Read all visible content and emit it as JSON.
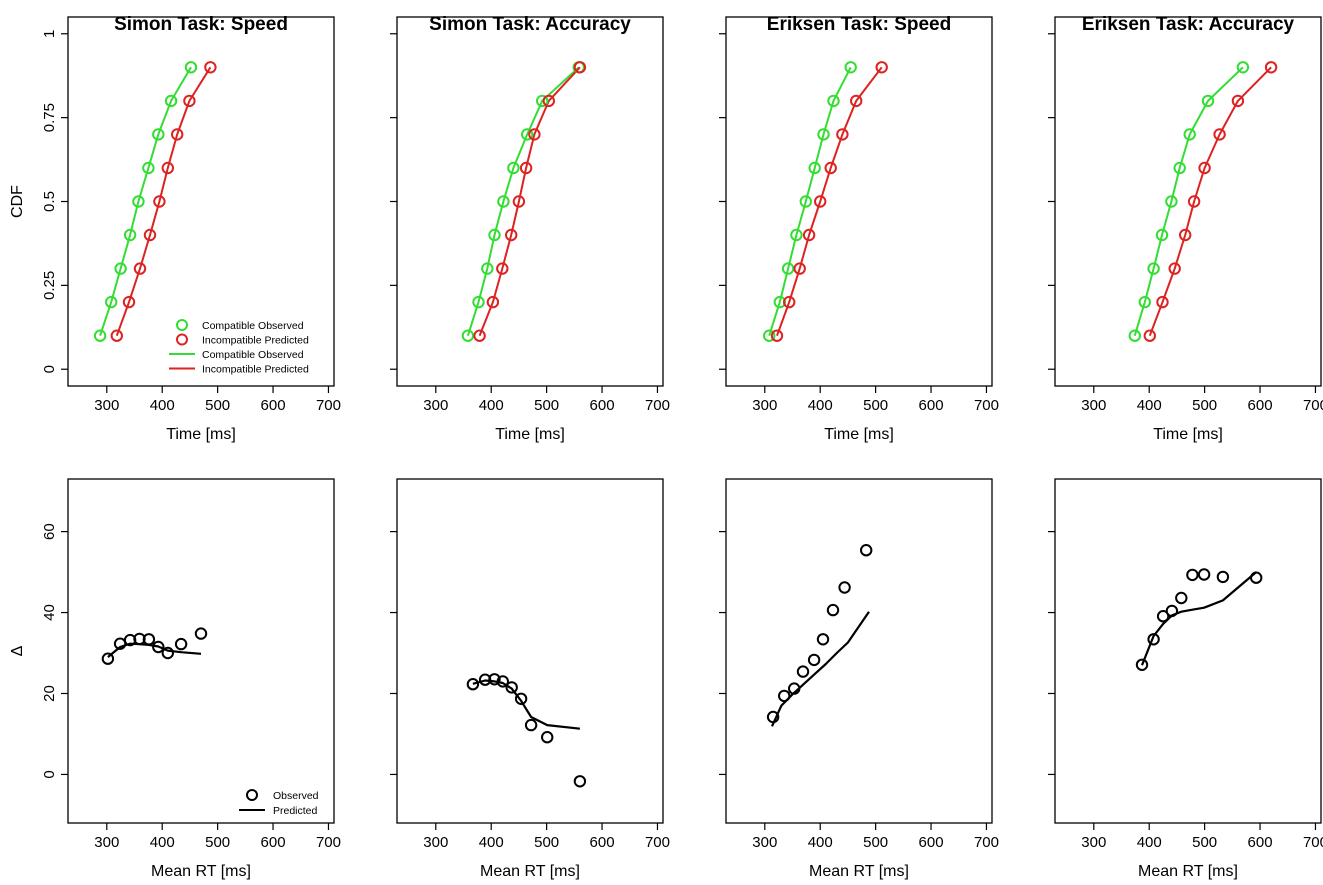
{
  "colors": {
    "compatible": "#33dd33",
    "incompatible": "#dd2222",
    "observed": "#000000"
  },
  "cdf_panels": [
    {
      "title": "Simon Task: Speed",
      "xlabel": "Time [ms]",
      "ylabel": "CDF",
      "show_yticklabels": true,
      "show_legend": true
    },
    {
      "title": "Simon Task: Accuracy",
      "xlabel": "Time [ms]",
      "ylabel": "",
      "show_yticklabels": false,
      "show_legend": false
    },
    {
      "title": "Eriksen Task: Speed",
      "xlabel": "Time [ms]",
      "ylabel": "",
      "show_yticklabels": false,
      "show_legend": false
    },
    {
      "title": "Eriksen Task: Accuracy",
      "xlabel": "Time [ms]",
      "ylabel": "",
      "show_yticklabels": false,
      "show_legend": false
    }
  ],
  "delta_panels": [
    {
      "xlabel": "Mean RT [ms]",
      "ylabel": "Δ",
      "show_yticklabels": true,
      "show_legend": true
    },
    {
      "xlabel": "Mean RT [ms]",
      "ylabel": "",
      "show_yticklabels": false,
      "show_legend": false
    },
    {
      "xlabel": "Mean RT [ms]",
      "ylabel": "",
      "show_yticklabels": false,
      "show_legend": false
    },
    {
      "xlabel": "Mean RT [ms]",
      "ylabel": "",
      "show_yticklabels": false,
      "show_legend": false
    }
  ],
  "cdf_legend": [
    "Compatible Observed",
    "Incompatible Predicted",
    "Compatible Observed",
    "Incompatible Predicted"
  ],
  "delta_legend": [
    "Observed",
    "Predicted"
  ],
  "chart_data": [
    {
      "type": "line",
      "title": "Simon Task: Speed",
      "xlabel": "Time [ms]",
      "ylabel": "CDF",
      "xlim": [
        230,
        710
      ],
      "ylim": [
        -0.05,
        1.05
      ],
      "xticks": [
        "300",
        "400",
        "500",
        "600",
        "700"
      ],
      "yticks": [
        "0",
        "0.25",
        "0.5",
        "0.75",
        "1"
      ],
      "probabilities": [
        0.1,
        0.2,
        0.3,
        0.4,
        0.5,
        0.6,
        0.7,
        0.8,
        0.9
      ],
      "series": [
        {
          "name": "Compatible Observed",
          "kind": "points",
          "color": "#33dd33",
          "x": [
            288,
            308,
            325,
            342,
            357,
            375,
            393,
            416,
            452
          ]
        },
        {
          "name": "Incompatible Predicted",
          "kind": "points",
          "color": "#dd2222",
          "x": [
            318,
            340,
            360,
            378,
            395,
            410,
            427,
            449,
            487
          ]
        },
        {
          "name": "Compatible Observed",
          "kind": "line",
          "color": "#33dd33",
          "x": [
            288,
            308,
            325,
            342,
            357,
            375,
            393,
            416,
            452
          ]
        },
        {
          "name": "Incompatible Predicted",
          "kind": "line",
          "color": "#dd2222",
          "x": [
            318,
            340,
            360,
            378,
            395,
            410,
            427,
            449,
            487
          ]
        }
      ]
    },
    {
      "type": "line",
      "title": "Simon Task: Accuracy",
      "xlabel": "Time [ms]",
      "ylabel": "",
      "xlim": [
        230,
        710
      ],
      "ylim": [
        -0.05,
        1.05
      ],
      "xticks": [
        "300",
        "400",
        "500",
        "600",
        "700"
      ],
      "yticks": [
        "",
        "",
        "",
        "",
        ""
      ],
      "probabilities": [
        0.1,
        0.2,
        0.3,
        0.4,
        0.5,
        0.6,
        0.7,
        0.8,
        0.9
      ],
      "series": [
        {
          "kind": "points",
          "color": "#33dd33",
          "x": [
            358,
            377,
            393,
            406,
            422,
            440,
            465,
            492,
            558
          ]
        },
        {
          "kind": "points",
          "color": "#dd2222",
          "x": [
            379,
            403,
            420,
            436,
            450,
            463,
            478,
            504,
            560
          ]
        },
        {
          "kind": "line",
          "color": "#33dd33",
          "x": [
            358,
            377,
            393,
            406,
            422,
            440,
            465,
            492,
            558
          ]
        },
        {
          "kind": "line",
          "color": "#dd2222",
          "x": [
            379,
            403,
            420,
            436,
            450,
            463,
            478,
            504,
            560
          ]
        }
      ]
    },
    {
      "type": "line",
      "title": "Eriksen Task: Speed",
      "xlabel": "Time [ms]",
      "ylabel": "",
      "xlim": [
        230,
        710
      ],
      "ylim": [
        -0.05,
        1.05
      ],
      "xticks": [
        "300",
        "400",
        "500",
        "600",
        "700"
      ],
      "yticks": [
        "",
        "",
        "",
        "",
        ""
      ],
      "probabilities": [
        0.1,
        0.2,
        0.3,
        0.4,
        0.5,
        0.6,
        0.7,
        0.8,
        0.9
      ],
      "series": [
        {
          "kind": "points",
          "color": "#33dd33",
          "x": [
            308,
            327,
            342,
            357,
            374,
            390,
            406,
            424,
            455
          ]
        },
        {
          "kind": "points",
          "color": "#dd2222",
          "x": [
            322,
            344,
            363,
            380,
            400,
            419,
            440,
            465,
            511
          ]
        },
        {
          "kind": "line",
          "color": "#33dd33",
          "x": [
            308,
            327,
            342,
            357,
            374,
            390,
            406,
            424,
            455
          ]
        },
        {
          "kind": "line",
          "color": "#dd2222",
          "x": [
            322,
            344,
            363,
            380,
            400,
            419,
            440,
            465,
            511
          ]
        }
      ]
    },
    {
      "type": "line",
      "title": "Eriksen Task: Accuracy",
      "xlabel": "Time [ms]",
      "ylabel": "",
      "xlim": [
        230,
        710
      ],
      "ylim": [
        -0.05,
        1.05
      ],
      "xticks": [
        "300",
        "400",
        "500",
        "600",
        "700"
      ],
      "yticks": [
        "",
        "",
        "",
        "",
        ""
      ],
      "probabilities": [
        0.1,
        0.2,
        0.3,
        0.4,
        0.5,
        0.6,
        0.7,
        0.8,
        0.9
      ],
      "series": [
        {
          "kind": "points",
          "color": "#33dd33",
          "x": [
            374,
            392,
            408,
            423,
            440,
            455,
            473,
            506,
            569
          ]
        },
        {
          "kind": "points",
          "color": "#dd2222",
          "x": [
            401,
            424,
            446,
            465,
            481,
            500,
            527,
            560,
            620
          ]
        },
        {
          "kind": "line",
          "color": "#33dd33",
          "x": [
            374,
            392,
            408,
            423,
            440,
            455,
            473,
            506,
            569
          ]
        },
        {
          "kind": "line",
          "color": "#dd2222",
          "x": [
            401,
            424,
            446,
            465,
            481,
            500,
            527,
            560,
            620
          ]
        }
      ]
    },
    {
      "type": "scatter",
      "title": "",
      "xlabel": "Mean RT [ms]",
      "ylabel": "Δ",
      "xlim": [
        230,
        710
      ],
      "ylim": [
        -12,
        73
      ],
      "xticks": [
        "300",
        "400",
        "500",
        "600",
        "700"
      ],
      "yticks": [
        "0",
        "20",
        "40",
        "60"
      ],
      "series": [
        {
          "name": "Observed",
          "kind": "points",
          "color": "#000000",
          "x": [
            302,
            324,
            342,
            359,
            376,
            393,
            410,
            434,
            470
          ],
          "y": [
            28.6,
            32.3,
            33.2,
            33.5,
            33.4,
            31.5,
            30.0,
            32.2,
            34.8
          ]
        },
        {
          "name": "Predicted",
          "kind": "line",
          "color": "#000000",
          "x": [
            302,
            324,
            342,
            359,
            376,
            393,
            410,
            434,
            470
          ],
          "y": [
            29.0,
            31.5,
            32.3,
            32.2,
            32.0,
            31.6,
            30.6,
            30.2,
            29.8
          ]
        }
      ]
    },
    {
      "type": "scatter",
      "title": "",
      "xlabel": "Mean RT [ms]",
      "ylabel": "",
      "xlim": [
        230,
        710
      ],
      "ylim": [
        -12,
        73
      ],
      "xticks": [
        "300",
        "400",
        "500",
        "600",
        "700"
      ],
      "yticks": [
        "",
        "",
        "",
        ""
      ],
      "series": [
        {
          "kind": "points",
          "color": "#000000",
          "x": [
            367,
            389,
            406,
            421,
            437,
            454,
            472,
            501,
            560
          ],
          "y": [
            22.3,
            23.4,
            23.5,
            23.0,
            21.5,
            18.7,
            12.2,
            9.2,
            -1.7
          ]
        },
        {
          "kind": "line",
          "color": "#000000",
          "x": [
            367,
            389,
            406,
            421,
            437,
            454,
            472,
            501,
            560
          ],
          "y": [
            22.4,
            23.2,
            23.0,
            22.6,
            21.2,
            18.2,
            14.2,
            12.2,
            11.3
          ]
        }
      ]
    },
    {
      "type": "scatter",
      "title": "",
      "xlabel": "Mean RT [ms]",
      "ylabel": "",
      "xlim": [
        230,
        710
      ],
      "ylim": [
        -12,
        73
      ],
      "xticks": [
        "300",
        "400",
        "500",
        "600",
        "700"
      ],
      "yticks": [
        "",
        "",
        "",
        ""
      ],
      "series": [
        {
          "kind": "points",
          "color": "#000000",
          "x": [
            315,
            335,
            353,
            369,
            389,
            405,
            423,
            444,
            483
          ],
          "y": [
            14.2,
            19.4,
            21.2,
            25.4,
            28.3,
            33.4,
            40.6,
            46.2,
            55.4
          ]
        },
        {
          "kind": "line",
          "color": "#000000",
          "x": [
            313,
            330,
            350,
            370,
            390,
            410,
            430,
            450,
            488
          ],
          "y": [
            11.9,
            17.0,
            19.8,
            22.3,
            24.8,
            27.3,
            30.0,
            32.6,
            40.2
          ]
        }
      ]
    },
    {
      "type": "scatter",
      "title": "",
      "xlabel": "Mean RT [ms]",
      "ylabel": "",
      "xlim": [
        230,
        710
      ],
      "ylim": [
        -12,
        73
      ],
      "xticks": [
        "300",
        "400",
        "500",
        "600",
        "700"
      ],
      "yticks": [
        "",
        "",
        "",
        ""
      ],
      "series": [
        {
          "kind": "points",
          "color": "#000000",
          "x": [
            387,
            408,
            425,
            441,
            458,
            478,
            499,
            533,
            593
          ],
          "y": [
            27.1,
            33.4,
            39.1,
            40.4,
            43.6,
            49.3,
            49.4,
            48.8,
            48.6
          ]
        },
        {
          "kind": "line",
          "color": "#000000",
          "x": [
            387,
            408,
            425,
            441,
            458,
            478,
            499,
            533,
            593
          ],
          "y": [
            27.0,
            34.2,
            37.2,
            39.3,
            40.2,
            40.7,
            41.2,
            43.0,
            50.0
          ]
        }
      ]
    }
  ]
}
